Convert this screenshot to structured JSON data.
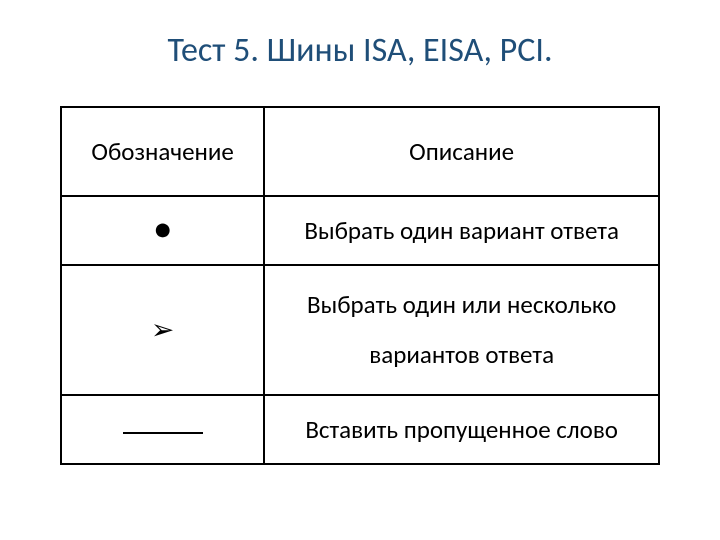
{
  "title": "Тест 5. Шины ISA, EISA, PCI.",
  "table": {
    "header": {
      "symbol": "Обозначение",
      "description": "Описание"
    },
    "rows": [
      {
        "symbol_type": "bullet",
        "description": "Выбрать один вариант ответа"
      },
      {
        "symbol_type": "arrow",
        "description_line1": "Выбрать один или несколько",
        "description_line2": "вариантов ответа"
      },
      {
        "symbol_type": "underline",
        "description": "Вставить пропущенное слово"
      }
    ]
  },
  "colors": {
    "title_color": "#1f4e78",
    "border_color": "#000000",
    "text_color": "#000000",
    "background": "#ffffff"
  },
  "typography": {
    "title_fontsize": 34,
    "cell_fontsize": 25
  }
}
